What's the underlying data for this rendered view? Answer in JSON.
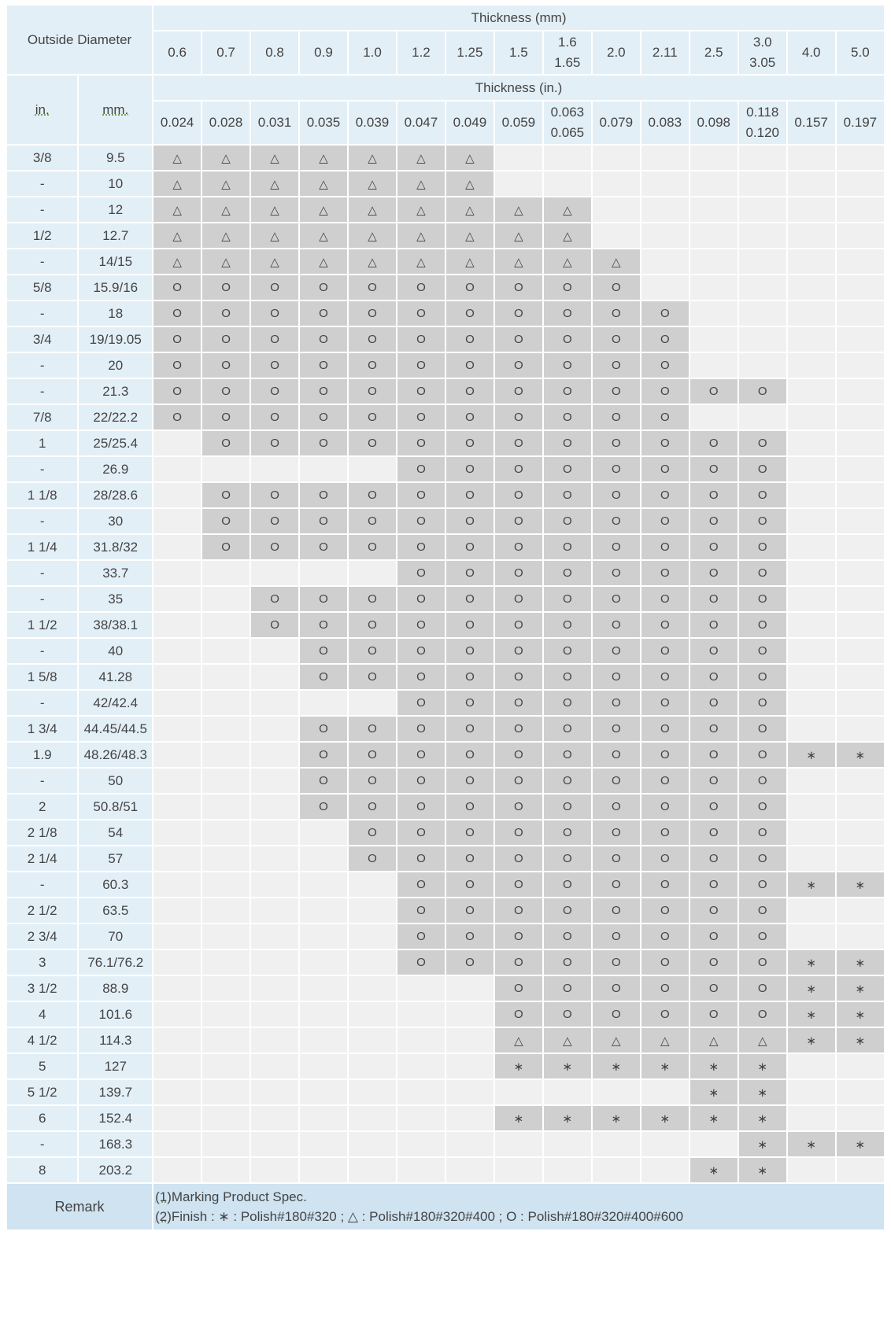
{
  "headers": {
    "outside_diameter": "Outside Diameter",
    "thickness_mm": "Thickness (mm)",
    "thickness_in": "Thickness (in.)",
    "col_in": "in.",
    "col_mm": "mm."
  },
  "thickness_mm": [
    [
      "0.6"
    ],
    [
      "0.7"
    ],
    [
      "0.8"
    ],
    [
      "0.9"
    ],
    [
      "1.0"
    ],
    [
      "1.2"
    ],
    [
      "1.25"
    ],
    [
      "1.5"
    ],
    [
      "1.6",
      "1.65"
    ],
    [
      "2.0"
    ],
    [
      "2.11"
    ],
    [
      "2.5"
    ],
    [
      "3.0",
      "3.05"
    ],
    [
      "4.0"
    ],
    [
      "5.0"
    ]
  ],
  "thickness_in": [
    [
      "0.024"
    ],
    [
      "0.028"
    ],
    [
      "0.031"
    ],
    [
      "0.035"
    ],
    [
      "0.039"
    ],
    [
      "0.047"
    ],
    [
      "0.049"
    ],
    [
      "0.059"
    ],
    [
      "0.063",
      "0.065"
    ],
    [
      "0.079"
    ],
    [
      "0.083"
    ],
    [
      "0.098"
    ],
    [
      "0.118",
      "0.120"
    ],
    [
      "0.157"
    ],
    [
      "0.197"
    ]
  ],
  "symbols": {
    "A": "∗",
    "T": "△",
    "O": "O"
  },
  "rows": [
    {
      "in": "3/8",
      "mm": "9.5",
      "cells": "TTTTTTT........"
    },
    {
      "in": "-",
      "mm": "10",
      "cells": "TTTTTTT........"
    },
    {
      "in": "-",
      "mm": "12",
      "cells": "TTTTTTTTT......"
    },
    {
      "in": "1/2",
      "mm": "12.7",
      "cells": "TTTTTTTTT......"
    },
    {
      "in": "-",
      "mm": "14/15",
      "cells": "TTTTTTTTTT....."
    },
    {
      "in": "5/8",
      "mm": "15.9/16",
      "cells": "OOOOOOOOOO....."
    },
    {
      "in": "-",
      "mm": "18",
      "cells": "OOOOOOOOOOO...."
    },
    {
      "in": "3/4",
      "mm": "19/19.05",
      "cells": "OOOOOOOOOOO...."
    },
    {
      "in": "-",
      "mm": "20",
      "cells": "OOOOOOOOOOO...."
    },
    {
      "in": "-",
      "mm": "21.3",
      "cells": "OOOOOOOOOOOOO.."
    },
    {
      "in": "7/8",
      "mm": "22/22.2",
      "cells": "OOOOOOOOOOO...."
    },
    {
      "in": "1",
      "mm": "25/25.4",
      "cells": ".OOOOOOOOOOOO.."
    },
    {
      "in": "-",
      "mm": "26.9",
      "cells": ".....OOOOOOOO.."
    },
    {
      "in": "1 1/8",
      "mm": "28/28.6",
      "cells": ".OOOOOOOOOOOO.."
    },
    {
      "in": "-",
      "mm": "30",
      "cells": ".OOOOOOOOOOOO.."
    },
    {
      "in": "1 1/4",
      "mm": "31.8/32",
      "cells": ".OOOOOOOOOOOO.."
    },
    {
      "in": "-",
      "mm": "33.7",
      "cells": ".....OOOOOOOO.."
    },
    {
      "in": "-",
      "mm": "35",
      "cells": "..OOOOOOOOOOO.."
    },
    {
      "in": "1 1/2",
      "mm": "38/38.1",
      "cells": "..OOOOOOOOOOO.."
    },
    {
      "in": "-",
      "mm": "40",
      "cells": "...OOOOOOOOOO.."
    },
    {
      "in": "1 5/8",
      "mm": "41.28",
      "cells": "...OOOOOOOOOO.."
    },
    {
      "in": "-",
      "mm": "42/42.4",
      "cells": ".....OOOOOOOO.."
    },
    {
      "in": "1 3/4",
      "mm": "44.45/44.5",
      "cells": "...OOOOOOOOOO.."
    },
    {
      "in": "1.9",
      "mm": "48.26/48.3",
      "cells": "...OOOOOOOOOOAA"
    },
    {
      "in": "-",
      "mm": "50",
      "cells": "...OOOOOOOOOO.."
    },
    {
      "in": "2",
      "mm": "50.8/51",
      "cells": "...OOOOOOOOOO.."
    },
    {
      "in": "2 1/8",
      "mm": "54",
      "cells": "....OOOOOOOOO.."
    },
    {
      "in": "2 1/4",
      "mm": "57",
      "cells": "....OOOOOOOOO.."
    },
    {
      "in": "-",
      "mm": "60.3",
      "cells": ".....OOOOOOOOAA"
    },
    {
      "in": "2 1/2",
      "mm": "63.5",
      "cells": ".....OOOOOOOO.."
    },
    {
      "in": "2 3/4",
      "mm": "70",
      "cells": ".....OOOOOOOO.."
    },
    {
      "in": "3",
      "mm": "76.1/76.2",
      "cells": ".....OOOOOOOOAA"
    },
    {
      "in": "3 1/2",
      "mm": "88.9",
      "cells": ".......OOOOOOAA"
    },
    {
      "in": "4",
      "mm": "101.6",
      "cells": ".......OOOOOOAA"
    },
    {
      "in": "4 1/2",
      "mm": "114.3",
      "cells": ".......TTTTTTAA"
    },
    {
      "in": "5",
      "mm": "127",
      "cells": ".......AAAAAA.."
    },
    {
      "in": "5 1/2",
      "mm": "139.7",
      "cells": "...........AA.."
    },
    {
      "in": "6",
      "mm": "152.4",
      "cells": ".......AAAAAA.."
    },
    {
      "in": "-",
      "mm": "168.3",
      "cells": "............AAA"
    },
    {
      "in": "8",
      "mm": "203.2",
      "cells": "...........AA.."
    }
  ],
  "remark": {
    "label": "Remark",
    "line1_num": "(1)",
    "line1_text": "Marking  Product Spec.",
    "line2_num": "(2)",
    "line2_text": "Finish : ∗ : Polish#180#320 ; △ : Polish#180#320#400 ; O : Polish#180#320#400#600"
  }
}
